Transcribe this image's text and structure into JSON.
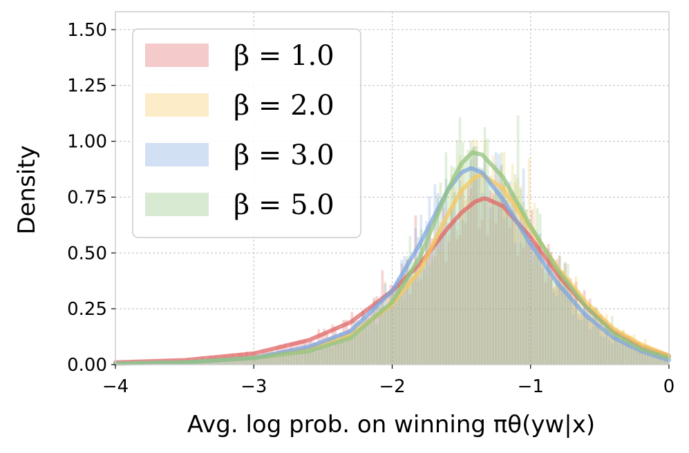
{
  "chart_data": {
    "type": "area",
    "title": "",
    "xlabel": "Avg. log prob. on winning πθ(yw|x)",
    "ylabel": "Density",
    "xlim": [
      -4,
      0
    ],
    "ylim": [
      0,
      1.58
    ],
    "grid": true,
    "legend": "top-left",
    "x_ticks": [
      "−4",
      "−3",
      "−2",
      "−1",
      "0"
    ],
    "y_ticks": [
      "0.00",
      "0.25",
      "0.50",
      "0.75",
      "1.00",
      "1.25",
      "1.50"
    ],
    "y_tick_values": [
      0,
      0.25,
      0.5,
      0.75,
      1.0,
      1.25,
      1.5
    ],
    "x_tick_values": [
      -4,
      -3,
      -2,
      -1,
      0
    ],
    "series": [
      {
        "name": "β = 1.0",
        "color": "#e06666",
        "x": [
          -4.0,
          -3.5,
          -3.0,
          -2.6,
          -2.3,
          -2.0,
          -1.8,
          -1.6,
          -1.5,
          -1.4,
          -1.33,
          -1.2,
          -1.0,
          -0.8,
          -0.6,
          -0.4,
          -0.2,
          0.0
        ],
        "y": [
          0.01,
          0.02,
          0.05,
          0.11,
          0.19,
          0.33,
          0.45,
          0.61,
          0.68,
          0.73,
          0.745,
          0.71,
          0.57,
          0.4,
          0.26,
          0.15,
          0.08,
          0.04
        ]
      },
      {
        "name": "β = 2.0",
        "color": "#f6c85f",
        "x": [
          -4.0,
          -3.5,
          -3.0,
          -2.6,
          -2.3,
          -2.0,
          -1.8,
          -1.6,
          -1.5,
          -1.4,
          -1.35,
          -1.2,
          -1.0,
          -0.8,
          -0.6,
          -0.4,
          -0.2,
          0.0
        ],
        "y": [
          0.005,
          0.01,
          0.03,
          0.07,
          0.13,
          0.27,
          0.42,
          0.67,
          0.78,
          0.84,
          0.85,
          0.79,
          0.61,
          0.43,
          0.28,
          0.16,
          0.09,
          0.04
        ]
      },
      {
        "name": "β = 3.0",
        "color": "#7ea6e0",
        "x": [
          -4.0,
          -3.5,
          -3.0,
          -2.6,
          -2.3,
          -2.0,
          -1.8,
          -1.6,
          -1.5,
          -1.43,
          -1.35,
          -1.2,
          -1.0,
          -0.8,
          -0.6,
          -0.4,
          -0.2,
          0.0
        ],
        "y": [
          0.005,
          0.01,
          0.03,
          0.08,
          0.15,
          0.33,
          0.54,
          0.78,
          0.86,
          0.88,
          0.86,
          0.74,
          0.54,
          0.36,
          0.22,
          0.12,
          0.06,
          0.02
        ]
      },
      {
        "name": "β = 5.0",
        "color": "#93c47d",
        "x": [
          -4.0,
          -3.5,
          -3.0,
          -2.6,
          -2.3,
          -2.0,
          -1.8,
          -1.6,
          -1.5,
          -1.42,
          -1.35,
          -1.2,
          -1.0,
          -0.8,
          -0.6,
          -0.4,
          -0.2,
          0.0
        ],
        "y": [
          0.005,
          0.01,
          0.03,
          0.06,
          0.12,
          0.28,
          0.48,
          0.78,
          0.9,
          0.95,
          0.94,
          0.84,
          0.62,
          0.42,
          0.26,
          0.14,
          0.07,
          0.03
        ]
      }
    ]
  }
}
